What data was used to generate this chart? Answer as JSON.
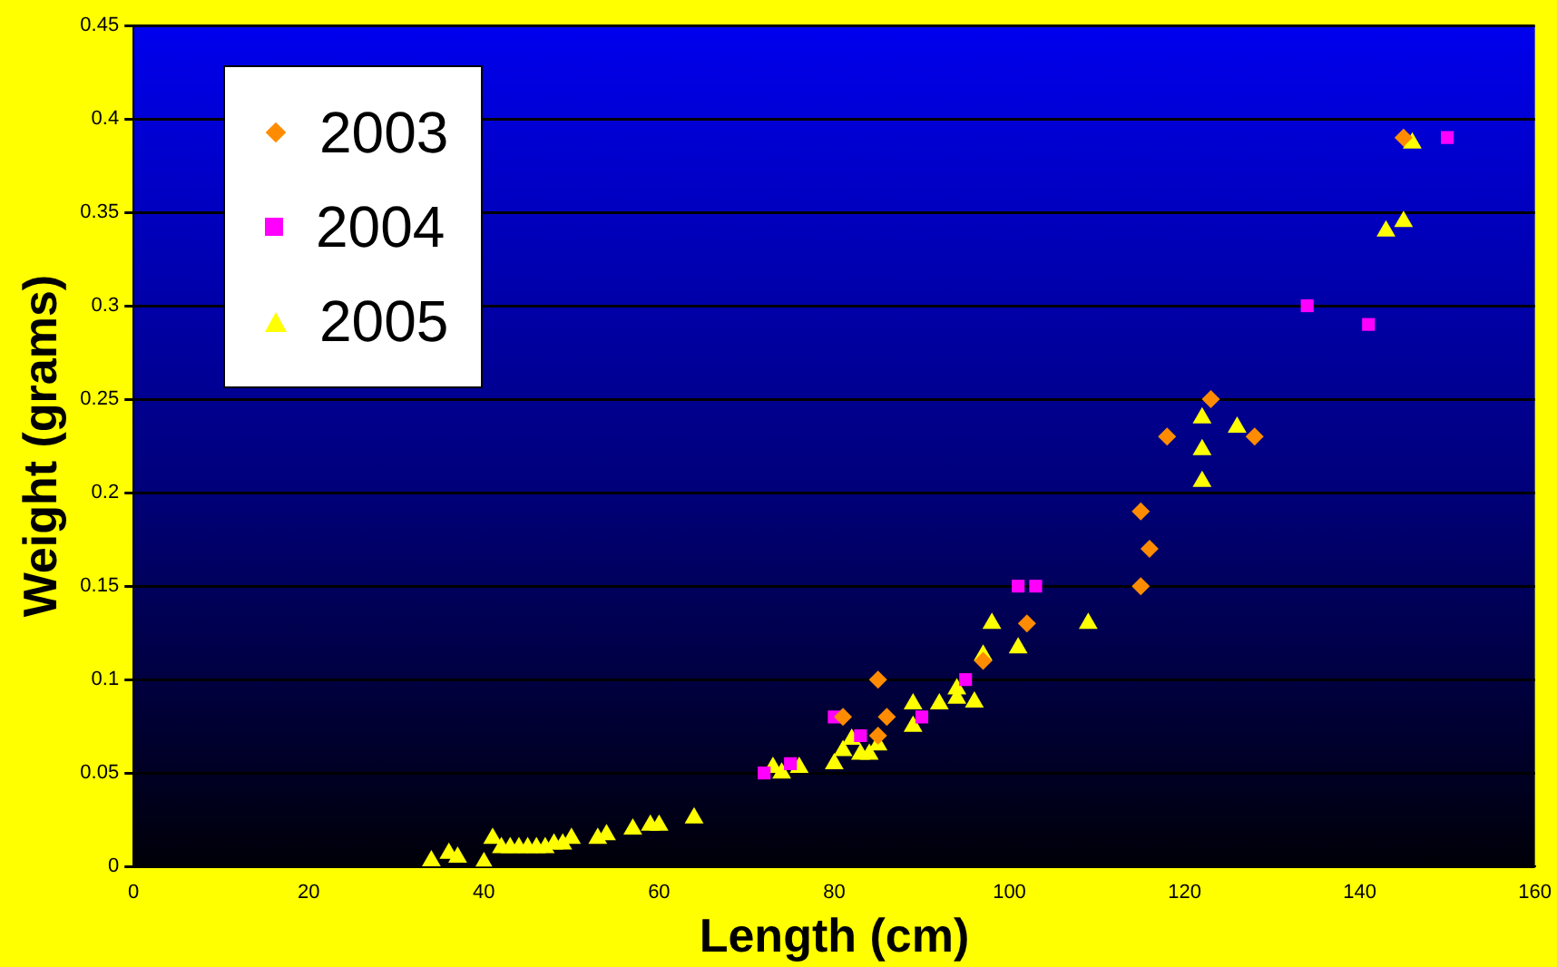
{
  "chart_data": {
    "type": "scatter",
    "xlabel": "Length (cm)",
    "ylabel": "Weight (grams)",
    "xlim": [
      0,
      160
    ],
    "xticks": [
      0,
      20,
      40,
      60,
      80,
      100,
      120,
      140,
      160
    ],
    "ylim": [
      0,
      0.45
    ],
    "yticks": [
      0,
      0.05,
      0.1,
      0.15,
      0.2,
      0.25,
      0.3,
      0.35,
      0.4,
      0.45
    ],
    "grid": "y",
    "legend": "top left",
    "series": [
      {
        "name": "2003",
        "color": "#ff8c00",
        "marker": "diamond",
        "x": [
          81,
          85,
          85,
          86,
          97,
          102,
          115,
          115,
          116,
          118,
          123,
          128,
          145
        ],
        "values": [
          0.08,
          0.1,
          0.07,
          0.08,
          0.11,
          0.13,
          0.15,
          0.19,
          0.17,
          0.23,
          0.25,
          0.23,
          0.39
        ]
      },
      {
        "name": "2004",
        "color": "#ff00ff",
        "marker": "square",
        "x": [
          72,
          75,
          80,
          83,
          90,
          95,
          101,
          103,
          134,
          141,
          150
        ],
        "values": [
          0.05,
          0.055,
          0.08,
          0.07,
          0.08,
          0.1,
          0.15,
          0.15,
          0.3,
          0.29,
          0.39
        ]
      },
      {
        "name": "2005",
        "color": "#ffff00",
        "marker": "triangle",
        "x": [
          34,
          36,
          37,
          40,
          41,
          42,
          43,
          44,
          45,
          46,
          47,
          48,
          49,
          50,
          53,
          54,
          57,
          59,
          60,
          64,
          73,
          74,
          76,
          80,
          81,
          82,
          83,
          84,
          85,
          89,
          89,
          92,
          94,
          94,
          96,
          97,
          98,
          101,
          109,
          122,
          122,
          122,
          126,
          143,
          145,
          146
        ],
        "values": [
          0.003,
          0.007,
          0.005,
          0.002,
          0.015,
          0.01,
          0.01,
          0.01,
          0.01,
          0.01,
          0.01,
          0.012,
          0.012,
          0.015,
          0.015,
          0.017,
          0.02,
          0.022,
          0.022,
          0.026,
          0.053,
          0.05,
          0.053,
          0.055,
          0.062,
          0.068,
          0.06,
          0.06,
          0.065,
          0.075,
          0.087,
          0.087,
          0.09,
          0.095,
          0.088,
          0.113,
          0.13,
          0.117,
          0.13,
          0.24,
          0.223,
          0.206,
          0.235,
          0.34,
          0.345,
          0.387
        ]
      }
    ]
  }
}
